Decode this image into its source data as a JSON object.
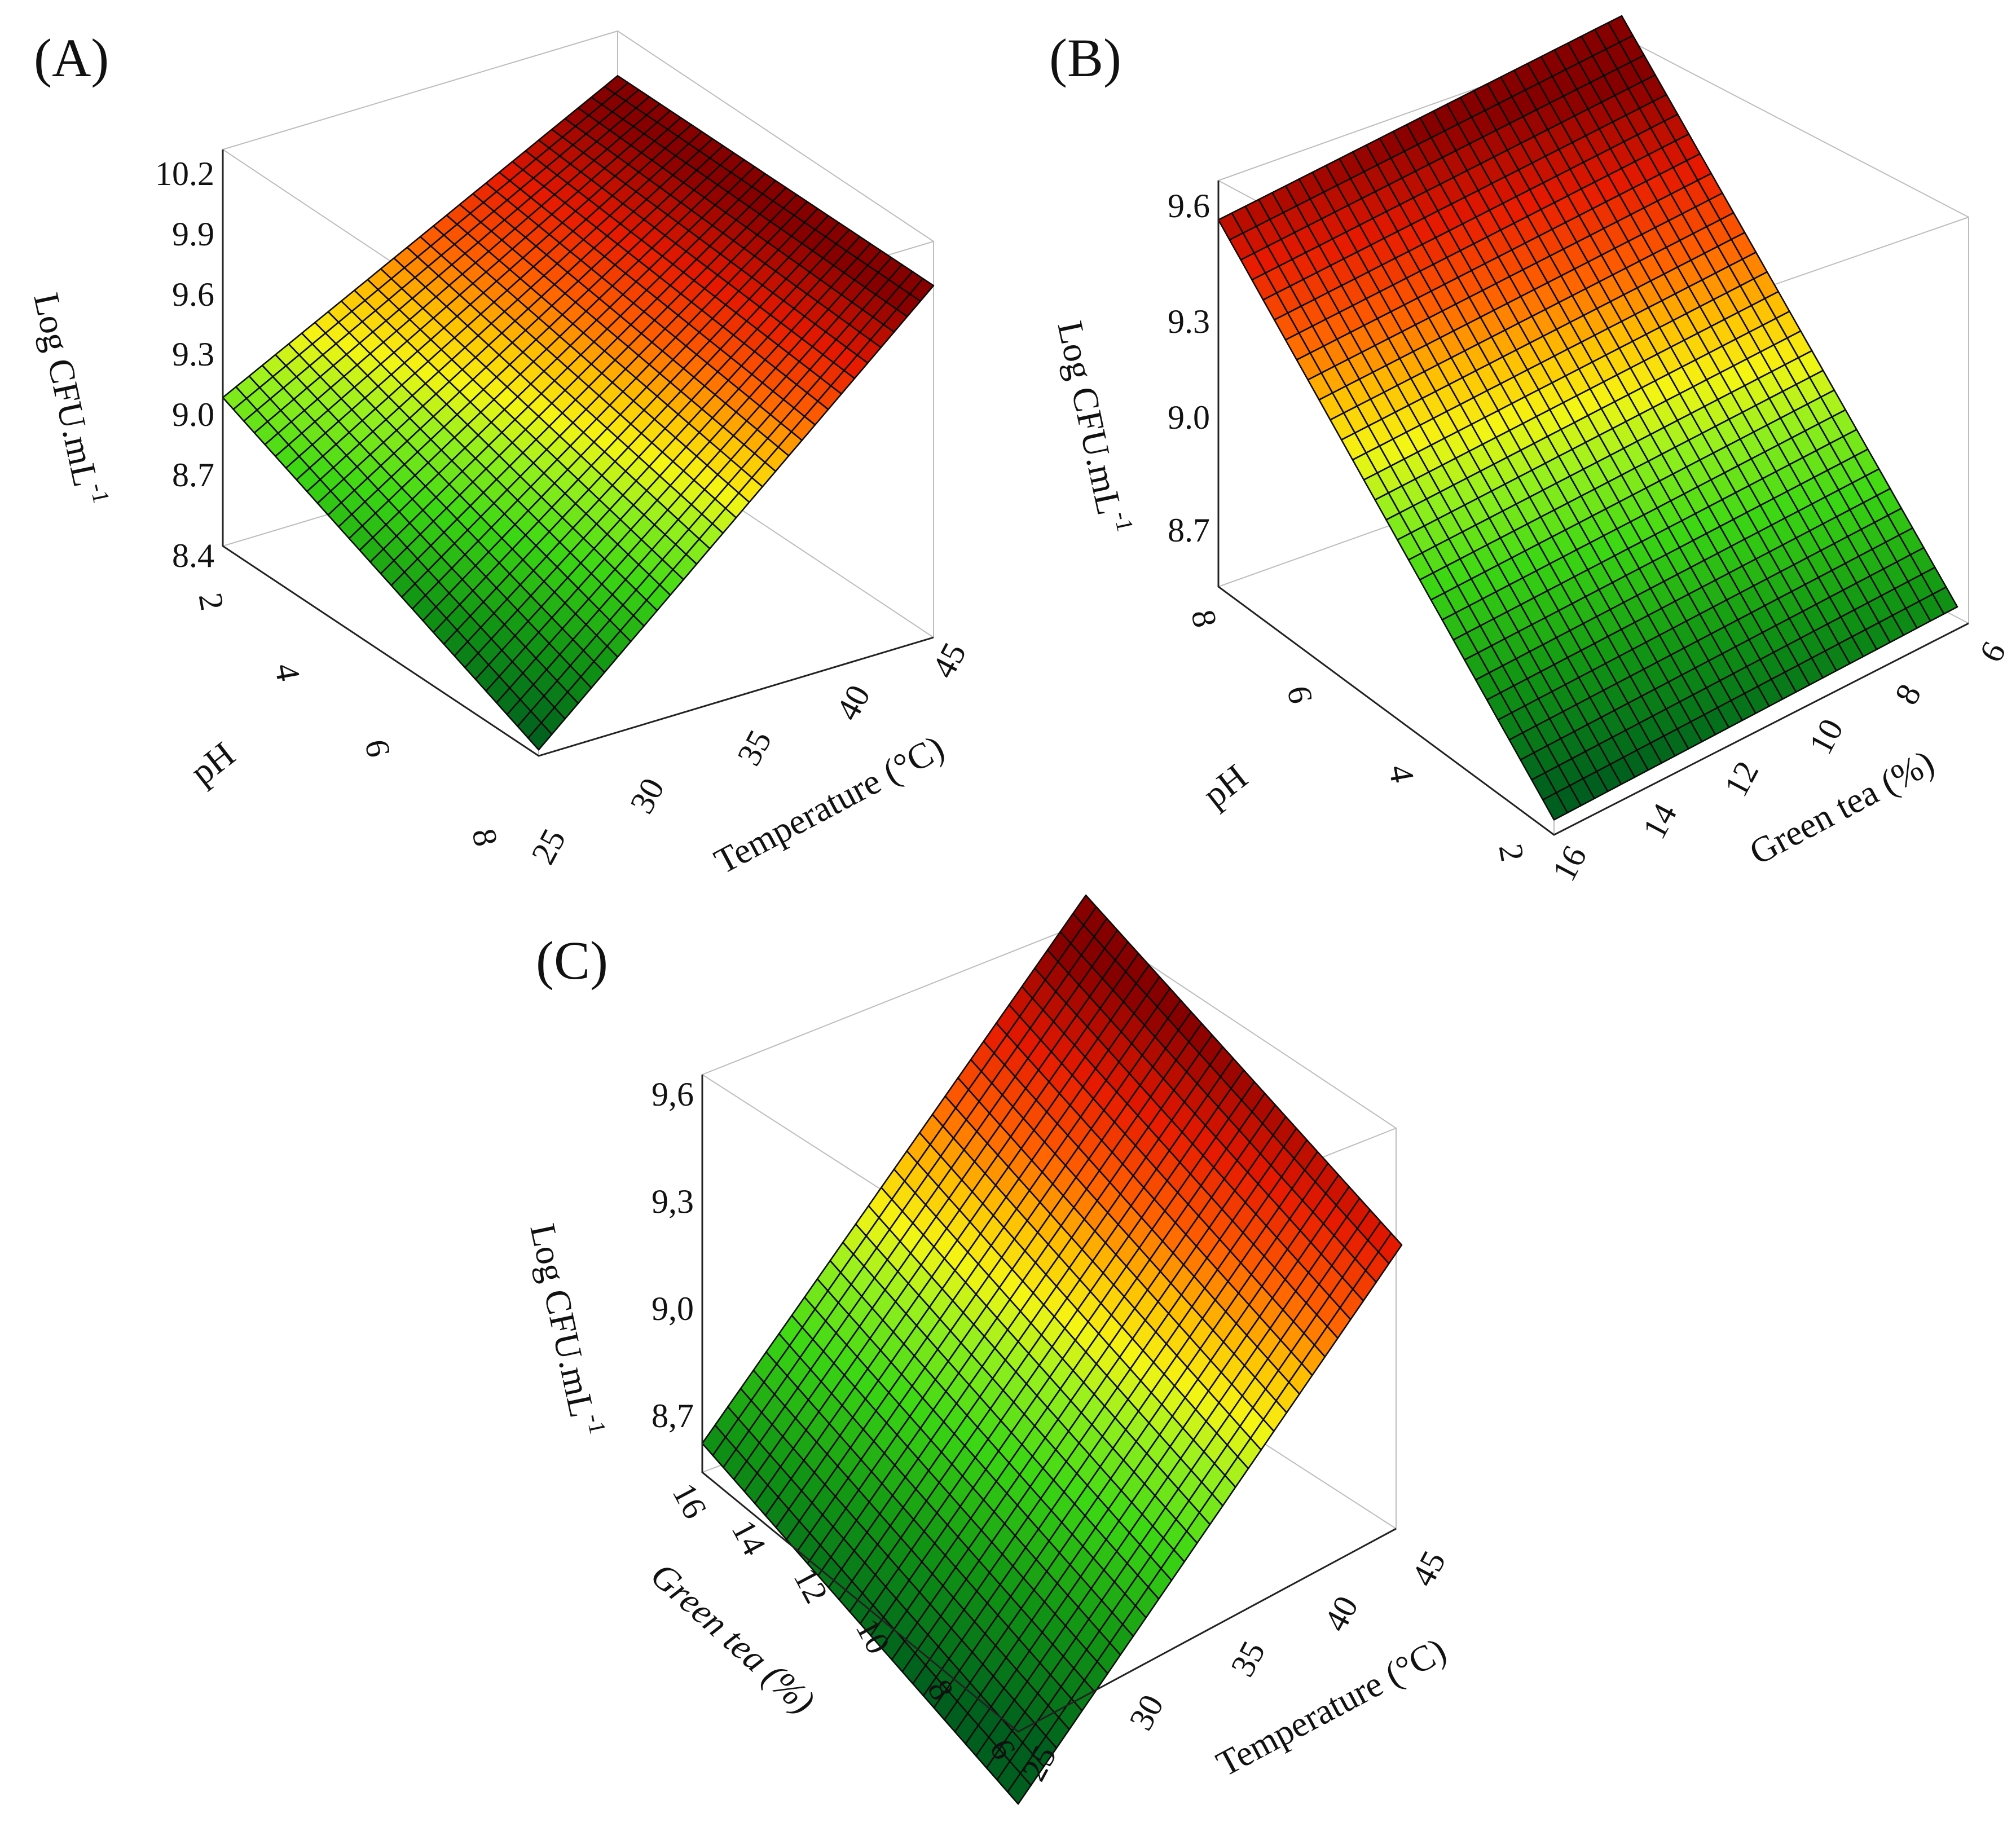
{
  "chart_data": [
    {
      "type": "surface3d",
      "panel_label": "(A)",
      "zlabel": "Log CFU.mL",
      "zlabel_sup": "-1",
      "xlabel": "Temperature (°C)",
      "ylabel": "pH",
      "x_ticks": [
        "25",
        "30",
        "35",
        "40",
        "45"
      ],
      "y_ticks": [
        "2",
        "4",
        "6",
        "8"
      ],
      "z_ticks": [
        "8.4",
        "8.7",
        "9.0",
        "9.3",
        "9.6",
        "9.9",
        "10.2"
      ],
      "xlim": [
        25,
        45
      ],
      "ylim": [
        2,
        8
      ],
      "zlim": [
        8.25,
        10.2
      ],
      "corners": {
        "x25_pH2": 8.98,
        "x45_pH2": 9.98,
        "x25_pH8": 8.28,
        "x45_pH8": 9.98
      },
      "color_range": [
        8.3,
        9.9
      ],
      "grid": [
        30,
        30
      ]
    },
    {
      "type": "surface3d",
      "panel_label": "(B)",
      "zlabel": "Log CFU.mL",
      "zlabel_sup": "-1",
      "xlabel": "Green tea (%)",
      "ylabel": "pH",
      "x_ticks": [
        "6",
        "8",
        "10",
        "12",
        "14",
        "16"
      ],
      "y_ticks": [
        "2",
        "4",
        "6",
        "8"
      ],
      "z_ticks": [
        "8.7",
        "9.0",
        "9.3",
        "9.6"
      ],
      "xlim": [
        6,
        16
      ],
      "ylim": [
        2,
        8
      ],
      "zlim": [
        8.3,
        9.65
      ],
      "corners": {
        "x16_pH8": 9.52,
        "x6_pH8": 9.72,
        "x16_pH2": 8.35,
        "x6_pH2": 8.58
      },
      "color_range": [
        8.4,
        9.6
      ],
      "grid": [
        30,
        30
      ]
    },
    {
      "type": "surface3d",
      "panel_label": "(C)",
      "zlabel": "Log CFU.mL",
      "zlabel_sup": "-1",
      "xlabel": "Temperature (°C)",
      "ylabel": "Green tea (%)",
      "x_ticks": [
        "25",
        "30",
        "35",
        "40",
        "45"
      ],
      "y_ticks": [
        "6",
        "8",
        "10",
        "12",
        "14",
        "16"
      ],
      "z_ticks": [
        "8,7",
        "9,0",
        "9,3",
        "9,6"
      ],
      "xlim": [
        25,
        45
      ],
      "ylim": [
        6,
        16
      ],
      "zlim": [
        8.55,
        9.65
      ],
      "corners": {
        "x25_gt16": 8.63,
        "x45_gt16": 9.75,
        "x25_gt6": 8.35,
        "x45_gt6": 9.5
      },
      "color_range": [
        8.45,
        9.65
      ],
      "grid": [
        30,
        30
      ]
    }
  ]
}
